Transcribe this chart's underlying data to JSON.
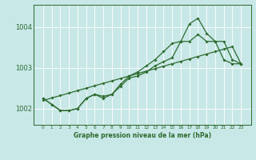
{
  "title": "Graphe pression niveau de la mer (hPa)",
  "bg_color": "#c8e8e8",
  "grid_color": "#ffffff",
  "line_color": "#2d6a2d",
  "x_labels": [
    "0",
    "1",
    "2",
    "3",
    "4",
    "5",
    "6",
    "7",
    "8",
    "9",
    "10",
    "11",
    "12",
    "13",
    "14",
    "15",
    "16",
    "17",
    "18",
    "19",
    "20",
    "21",
    "22",
    "23"
  ],
  "ylim": [
    1001.6,
    1004.55
  ],
  "yticks": [
    1002,
    1003,
    1004
  ],
  "line_straight": [
    1002.2,
    1002.26,
    1002.32,
    1002.38,
    1002.44,
    1002.5,
    1002.56,
    1002.62,
    1002.68,
    1002.74,
    1002.8,
    1002.86,
    1002.92,
    1002.98,
    1003.04,
    1003.1,
    1003.16,
    1003.22,
    1003.28,
    1003.34,
    1003.4,
    1003.46,
    1003.52,
    1003.1
  ],
  "line_mid": [
    1002.25,
    1002.1,
    1001.95,
    1001.95,
    1002.0,
    1002.25,
    1002.35,
    1002.25,
    1002.35,
    1002.55,
    1002.75,
    1002.8,
    1002.9,
    1003.05,
    1003.15,
    1003.25,
    1003.65,
    1003.65,
    1003.82,
    1003.65,
    1003.65,
    1003.2,
    1003.1,
    1003.1
  ],
  "line_high": [
    1002.25,
    1002.1,
    1001.95,
    1001.95,
    1002.0,
    1002.25,
    1002.35,
    1002.3,
    1002.35,
    1002.6,
    1002.8,
    1002.9,
    1003.05,
    1003.2,
    1003.4,
    1003.6,
    1003.65,
    1004.08,
    1004.22,
    1003.85,
    1003.65,
    1003.65,
    1003.2,
    1003.1
  ]
}
